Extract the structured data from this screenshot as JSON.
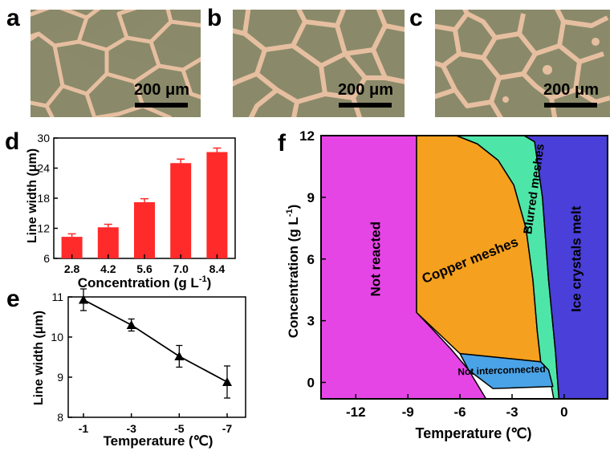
{
  "panels": {
    "a": {
      "letter": "a",
      "scale": "200 μm"
    },
    "b": {
      "letter": "b",
      "scale": "200 μm"
    },
    "c": {
      "letter": "c",
      "scale": "200 μm"
    },
    "d": {
      "letter": "d"
    },
    "e": {
      "letter": "e"
    },
    "f": {
      "letter": "f"
    }
  },
  "colors": {
    "bar": "#ff2a2a",
    "micro_bg": "#8b8a6b",
    "micro_line": "#e6bfa0",
    "region_not_reacted": "#e645e6",
    "region_copper": "#f5a01e",
    "region_blurred": "#4ee6a8",
    "region_ice": "#4a3fd8",
    "region_not_inter": "#4aa3e6"
  },
  "chart_data": [
    {
      "id": "d",
      "type": "bar",
      "categories": [
        "2.8",
        "4.2",
        "5.6",
        "7.0",
        "8.4"
      ],
      "values": [
        10.3,
        12.2,
        17.2,
        25.0,
        27.2
      ],
      "errors": [
        0.6,
        0.6,
        0.7,
        0.8,
        0.8
      ],
      "xlabel": "Concentration (g L",
      "xlabel_sup": "-1",
      "xlabel_end": ")",
      "ylabel": "Line width (μm)",
      "ylim": [
        6,
        30
      ],
      "yticks": [
        "6",
        "12",
        "18",
        "24",
        "30"
      ]
    },
    {
      "id": "e",
      "type": "line",
      "categories": [
        "-1",
        "-3",
        "-5",
        "-7"
      ],
      "values": [
        10.93,
        10.3,
        9.52,
        8.88
      ],
      "errors": [
        0.27,
        0.15,
        0.27,
        0.4
      ],
      "xlabel": "Temperature (℃)",
      "ylabel": "Line width (μm)",
      "ylim": [
        8,
        11
      ],
      "yticks": [
        "8",
        "9",
        "10",
        "11"
      ]
    },
    {
      "id": "f",
      "type": "area",
      "xlabel": "Temperature (℃)",
      "ylabel": "Concentration (g L",
      "ylabel_sup": "-1",
      "ylabel_end": ")",
      "xlim": [
        -14,
        2.5
      ],
      "ylim": [
        -0.8,
        12
      ],
      "xticks": [
        "-12",
        "-9",
        "-6",
        "-3",
        "0"
      ],
      "yticks": [
        "0",
        "3",
        "6",
        "9",
        "12"
      ],
      "regions": [
        {
          "name": "Not reacted",
          "color_key": "region_not_reacted",
          "points": [
            [
              -14,
              -0.8
            ],
            [
              -14,
              12
            ],
            [
              -8.5,
              12
            ],
            [
              -8.5,
              3.4
            ],
            [
              -7.6,
              2.6
            ],
            [
              -6.5,
              1.6
            ],
            [
              -5.5,
              0.6
            ],
            [
              -4.5,
              -0.8
            ]
          ]
        },
        {
          "name": "Copper meshes",
          "color_key": "region_copper",
          "points": [
            [
              -8.5,
              12
            ],
            [
              -6.2,
              12
            ],
            [
              -5.0,
              11.6
            ],
            [
              -3.8,
              10.8
            ],
            [
              -2.9,
              9.6
            ],
            [
              -2.2,
              7.5
            ],
            [
              -1.8,
              5.0
            ],
            [
              -1.55,
              2.5
            ],
            [
              -1.35,
              1.0
            ],
            [
              -6.0,
              1.4
            ],
            [
              -7.0,
              2.2
            ],
            [
              -8.5,
              3.4
            ]
          ]
        },
        {
          "name": "Blurred meshes",
          "color_key": "region_blurred",
          "points": [
            [
              -6.2,
              12
            ],
            [
              -2.3,
              12
            ],
            [
              -1.7,
              11.7
            ],
            [
              -1.25,
              9.0
            ],
            [
              -0.9,
              5.0
            ],
            [
              -0.5,
              1.5
            ],
            [
              -0.3,
              -0.8
            ],
            [
              -0.6,
              -0.8
            ],
            [
              -0.9,
              0.6
            ],
            [
              -1.35,
              1.0
            ],
            [
              -1.55,
              2.5
            ],
            [
              -1.8,
              5.0
            ],
            [
              -2.2,
              7.5
            ],
            [
              -2.9,
              9.6
            ],
            [
              -3.8,
              10.8
            ],
            [
              -5.0,
              11.6
            ]
          ]
        },
        {
          "name": "Not interconnected",
          "color_key": "region_not_inter",
          "points": [
            [
              -6.0,
              1.4
            ],
            [
              -1.35,
              1.0
            ],
            [
              -0.9,
              0.6
            ],
            [
              -0.65,
              -0.2
            ],
            [
              -4.1,
              -0.3
            ],
            [
              -5.5,
              0.6
            ]
          ]
        },
        {
          "name": "Ice crystals melt",
          "color_key": "region_ice",
          "points": [
            [
              -2.3,
              12
            ],
            [
              2.5,
              12
            ],
            [
              2.5,
              -0.8
            ],
            [
              -0.3,
              -0.8
            ],
            [
              -0.5,
              1.5
            ],
            [
              -0.9,
              5.0
            ],
            [
              -1.25,
              9.0
            ],
            [
              -1.7,
              11.7
            ]
          ]
        }
      ]
    }
  ]
}
